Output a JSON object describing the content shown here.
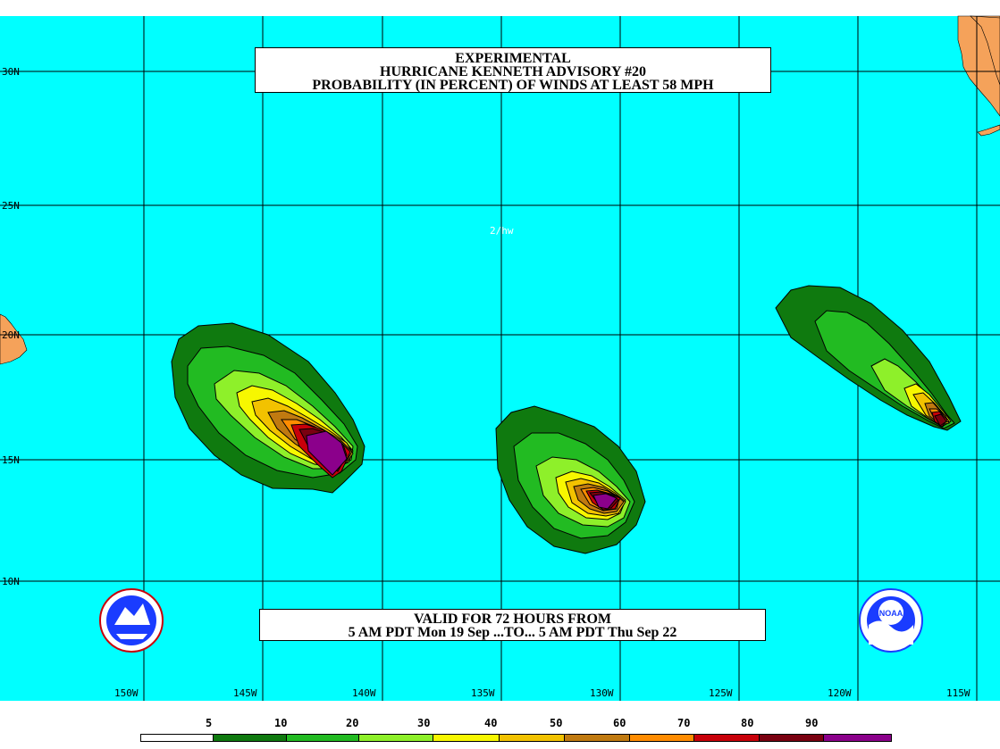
{
  "title": {
    "line1": "EXPERIMENTAL",
    "line2": "HURRICANE KENNETH ADVISORY #20",
    "line3": "PROBABILITY (IN PERCENT) OF WINDS AT LEAST 58 MPH"
  },
  "valid": {
    "line1": "VALID FOR 72 HOURS FROM",
    "line2": "5 AM PDT Mon 19 Sep ...TO... 5 AM PDT Thu Sep 22"
  },
  "watermark": "2/hw",
  "latitude_labels": [
    "30N",
    "25N",
    "20N",
    "15N",
    "10N"
  ],
  "longitude_labels": [
    "150W",
    "145W",
    "140W",
    "135W",
    "130W",
    "125W",
    "120W",
    "115W"
  ],
  "legend": {
    "labels": [
      "5",
      "10",
      "20",
      "30",
      "40",
      "50",
      "60",
      "70",
      "80",
      "90"
    ],
    "colors": [
      "#ffffff",
      "#0f7a0f",
      "#22bb22",
      "#8ef02a",
      "#f7f700",
      "#f2c200",
      "#c07a10",
      "#ff8c00",
      "#c8000a",
      "#7a0010",
      "#8b008b"
    ]
  },
  "colors": {
    "ocean": "#00ffff",
    "land": "#f5a25a",
    "grid": "#000000"
  },
  "logos": {
    "left": "nws-weather-service-logo-icon",
    "right": "noaa-logo-icon",
    "right_text": "NOAA"
  }
}
